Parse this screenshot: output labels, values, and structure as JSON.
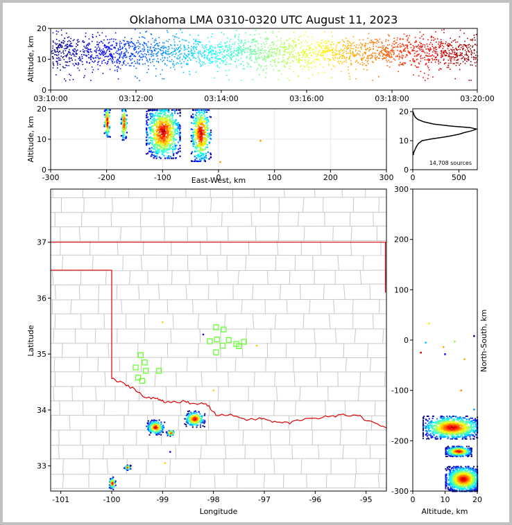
{
  "figure": {
    "title": "Oklahoma LMA 0310-0320 UTC August 11, 2023"
  },
  "chart_data": [
    {
      "id": "time-height",
      "type": "scatter",
      "ylabel": "Altitude, km",
      "xlim": [
        "03:10:00",
        "03:20:00"
      ],
      "ylim": [
        0,
        20
      ],
      "xticks": [
        "03:10:00",
        "03:12:00",
        "03:14:00",
        "03:16:00",
        "03:18:00",
        "03:20:00"
      ],
      "yticks": [
        0,
        10,
        20
      ],
      "color_by": "time",
      "altitude_band_km": [
        3,
        20
      ],
      "altitude_peak_km": 12.5
    },
    {
      "id": "east-west-altitude",
      "type": "scatter",
      "xlabel": "East-West, km",
      "ylabel": "Altitude, km",
      "xlim": [
        -300,
        300
      ],
      "ylim": [
        0,
        20
      ],
      "xticks": [
        -300,
        -200,
        -100,
        0,
        100,
        200,
        300
      ],
      "yticks": [
        0,
        10,
        20
      ],
      "clusters": [
        {
          "x_km": [
            -205,
            -195
          ],
          "alt_km": [
            10,
            20
          ]
        },
        {
          "x_km": [
            -175,
            -165
          ],
          "alt_km": [
            9,
            20
          ]
        },
        {
          "x_km": [
            -130,
            -70
          ],
          "alt_km": [
            3,
            20
          ]
        },
        {
          "x_km": [
            -50,
            -15
          ],
          "alt_km": [
            2,
            20
          ]
        }
      ],
      "isolated_points": [
        {
          "x_km": 75,
          "alt_km": 9.5
        },
        {
          "x_km": 3,
          "alt_km": 2.5
        }
      ]
    },
    {
      "id": "altitude-histogram",
      "type": "line",
      "xlim": [
        0,
        700
      ],
      "ylim": [
        0,
        21
      ],
      "xticks": [
        0,
        500
      ],
      "yticks": [
        0,
        10,
        20
      ],
      "annotation": "14,708 sources",
      "x": [
        5,
        10,
        25,
        40,
        60,
        100,
        200,
        330,
        420,
        500,
        560,
        640,
        690,
        620,
        420,
        230,
        120,
        55,
        30,
        15,
        8,
        3
      ],
      "y": [
        5,
        6,
        7,
        8,
        9,
        10,
        10.6,
        11.2,
        11.7,
        12.2,
        12.8,
        13.4,
        14,
        14.5,
        15,
        15.7,
        16.5,
        17.3,
        18,
        18.7,
        19.4,
        20
      ]
    },
    {
      "id": "plan-view",
      "type": "map",
      "xlabel": "Longitude",
      "ylabel": "Latitude",
      "xlim": [
        -101.2,
        -94.6
      ],
      "ylim": [
        32.55,
        37.95
      ],
      "xticks": [
        -101,
        -100,
        -99,
        -98,
        -97,
        -96,
        -95
      ],
      "yticks": [
        33,
        34,
        35,
        36,
        37
      ],
      "state_boundary_color": "#e00000",
      "county_color": "#c8c8c8",
      "station_color": "#66ff33",
      "stations": [
        [
          -97.95,
          35.48
        ],
        [
          -97.8,
          35.44
        ],
        [
          -98.07,
          35.23
        ],
        [
          -97.93,
          35.26
        ],
        [
          -97.7,
          35.25
        ],
        [
          -97.55,
          35.18
        ],
        [
          -97.4,
          35.22
        ],
        [
          -97.82,
          35.15
        ],
        [
          -97.5,
          35.14
        ],
        [
          -97.95,
          35.03
        ],
        [
          -99.43,
          34.98
        ],
        [
          -99.35,
          34.85
        ],
        [
          -99.53,
          34.76
        ],
        [
          -99.33,
          34.7
        ],
        [
          -99.07,
          34.7
        ],
        [
          -99.48,
          34.58
        ],
        [
          -99.4,
          34.52
        ]
      ],
      "storm_cells": [
        {
          "lon": -99.15,
          "lat": 33.7,
          "rx": 0.16,
          "ry": 0.12
        },
        {
          "lon": -98.85,
          "lat": 33.6,
          "rx": 0.08,
          "ry": 0.05
        },
        {
          "lon": -98.38,
          "lat": 33.85,
          "rx": 0.18,
          "ry": 0.13
        },
        {
          "lon": -99.7,
          "lat": 32.98,
          "rx": 0.06,
          "ry": 0.04
        },
        {
          "lon": -100.0,
          "lat": 32.7,
          "rx": 0.06,
          "ry": 0.1
        }
      ],
      "isolated_points": [
        [
          -98.85,
          33.25
        ],
        [
          -98.2,
          35.35
        ],
        [
          -99.0,
          35.57
        ],
        [
          -97.15,
          35.15
        ],
        [
          -98.0,
          34.35
        ],
        [
          -98.95,
          33.05
        ]
      ]
    },
    {
      "id": "altitude-north-south",
      "type": "scatter",
      "xlabel": "Altitude, km",
      "ylabel": "North-South, km",
      "xlim": [
        0,
        20
      ],
      "ylim": [
        -300,
        300
      ],
      "xticks": [
        0,
        10,
        20
      ],
      "yticks": [
        300,
        200,
        100,
        0,
        -100,
        -200,
        -300
      ],
      "clusters": [
        {
          "alt_km": [
            2,
            20
          ],
          "y_km": [
            -195,
            -150
          ]
        },
        {
          "alt_km": [
            9,
            17
          ],
          "y_km": [
            -230,
            -210
          ]
        },
        {
          "alt_km": [
            9,
            20
          ],
          "y_km": [
            -300,
            -250
          ]
        }
      ],
      "isolated_points": [
        [
          5,
          33
        ],
        [
          4,
          -5
        ],
        [
          13,
          -3
        ],
        [
          19,
          8
        ],
        [
          2.5,
          -25
        ],
        [
          10,
          -28
        ],
        [
          9.5,
          -14
        ],
        [
          16,
          -38
        ],
        [
          15,
          -100
        ],
        [
          19,
          -138
        ]
      ]
    }
  ]
}
